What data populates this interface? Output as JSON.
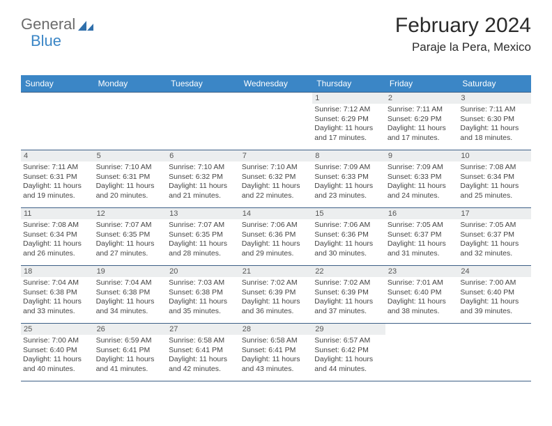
{
  "logo": {
    "text_gray": "General",
    "text_blue": "Blue",
    "icon_color": "#2f6fab"
  },
  "header": {
    "month_title": "February 2024",
    "location": "Paraje la Pera, Mexico"
  },
  "colors": {
    "header_bar": "#3b86c6",
    "header_text": "#ffffff",
    "divider": "#3b5e85",
    "daynum_bg": "#eceeef",
    "daynum_text": "#555555",
    "body_text": "#444444"
  },
  "day_names": [
    "Sunday",
    "Monday",
    "Tuesday",
    "Wednesday",
    "Thursday",
    "Friday",
    "Saturday"
  ],
  "weeks": [
    [
      {
        "empty": true
      },
      {
        "empty": true
      },
      {
        "empty": true
      },
      {
        "empty": true
      },
      {
        "num": "1",
        "sunrise": "Sunrise: 7:12 AM",
        "sunset": "Sunset: 6:29 PM",
        "daylight": "Daylight: 11 hours and 17 minutes."
      },
      {
        "num": "2",
        "sunrise": "Sunrise: 7:11 AM",
        "sunset": "Sunset: 6:29 PM",
        "daylight": "Daylight: 11 hours and 17 minutes."
      },
      {
        "num": "3",
        "sunrise": "Sunrise: 7:11 AM",
        "sunset": "Sunset: 6:30 PM",
        "daylight": "Daylight: 11 hours and 18 minutes."
      }
    ],
    [
      {
        "num": "4",
        "sunrise": "Sunrise: 7:11 AM",
        "sunset": "Sunset: 6:31 PM",
        "daylight": "Daylight: 11 hours and 19 minutes."
      },
      {
        "num": "5",
        "sunrise": "Sunrise: 7:10 AM",
        "sunset": "Sunset: 6:31 PM",
        "daylight": "Daylight: 11 hours and 20 minutes."
      },
      {
        "num": "6",
        "sunrise": "Sunrise: 7:10 AM",
        "sunset": "Sunset: 6:32 PM",
        "daylight": "Daylight: 11 hours and 21 minutes."
      },
      {
        "num": "7",
        "sunrise": "Sunrise: 7:10 AM",
        "sunset": "Sunset: 6:32 PM",
        "daylight": "Daylight: 11 hours and 22 minutes."
      },
      {
        "num": "8",
        "sunrise": "Sunrise: 7:09 AM",
        "sunset": "Sunset: 6:33 PM",
        "daylight": "Daylight: 11 hours and 23 minutes."
      },
      {
        "num": "9",
        "sunrise": "Sunrise: 7:09 AM",
        "sunset": "Sunset: 6:33 PM",
        "daylight": "Daylight: 11 hours and 24 minutes."
      },
      {
        "num": "10",
        "sunrise": "Sunrise: 7:08 AM",
        "sunset": "Sunset: 6:34 PM",
        "daylight": "Daylight: 11 hours and 25 minutes."
      }
    ],
    [
      {
        "num": "11",
        "sunrise": "Sunrise: 7:08 AM",
        "sunset": "Sunset: 6:34 PM",
        "daylight": "Daylight: 11 hours and 26 minutes."
      },
      {
        "num": "12",
        "sunrise": "Sunrise: 7:07 AM",
        "sunset": "Sunset: 6:35 PM",
        "daylight": "Daylight: 11 hours and 27 minutes."
      },
      {
        "num": "13",
        "sunrise": "Sunrise: 7:07 AM",
        "sunset": "Sunset: 6:35 PM",
        "daylight": "Daylight: 11 hours and 28 minutes."
      },
      {
        "num": "14",
        "sunrise": "Sunrise: 7:06 AM",
        "sunset": "Sunset: 6:36 PM",
        "daylight": "Daylight: 11 hours and 29 minutes."
      },
      {
        "num": "15",
        "sunrise": "Sunrise: 7:06 AM",
        "sunset": "Sunset: 6:36 PM",
        "daylight": "Daylight: 11 hours and 30 minutes."
      },
      {
        "num": "16",
        "sunrise": "Sunrise: 7:05 AM",
        "sunset": "Sunset: 6:37 PM",
        "daylight": "Daylight: 11 hours and 31 minutes."
      },
      {
        "num": "17",
        "sunrise": "Sunrise: 7:05 AM",
        "sunset": "Sunset: 6:37 PM",
        "daylight": "Daylight: 11 hours and 32 minutes."
      }
    ],
    [
      {
        "num": "18",
        "sunrise": "Sunrise: 7:04 AM",
        "sunset": "Sunset: 6:38 PM",
        "daylight": "Daylight: 11 hours and 33 minutes."
      },
      {
        "num": "19",
        "sunrise": "Sunrise: 7:04 AM",
        "sunset": "Sunset: 6:38 PM",
        "daylight": "Daylight: 11 hours and 34 minutes."
      },
      {
        "num": "20",
        "sunrise": "Sunrise: 7:03 AM",
        "sunset": "Sunset: 6:38 PM",
        "daylight": "Daylight: 11 hours and 35 minutes."
      },
      {
        "num": "21",
        "sunrise": "Sunrise: 7:02 AM",
        "sunset": "Sunset: 6:39 PM",
        "daylight": "Daylight: 11 hours and 36 minutes."
      },
      {
        "num": "22",
        "sunrise": "Sunrise: 7:02 AM",
        "sunset": "Sunset: 6:39 PM",
        "daylight": "Daylight: 11 hours and 37 minutes."
      },
      {
        "num": "23",
        "sunrise": "Sunrise: 7:01 AM",
        "sunset": "Sunset: 6:40 PM",
        "daylight": "Daylight: 11 hours and 38 minutes."
      },
      {
        "num": "24",
        "sunrise": "Sunrise: 7:00 AM",
        "sunset": "Sunset: 6:40 PM",
        "daylight": "Daylight: 11 hours and 39 minutes."
      }
    ],
    [
      {
        "num": "25",
        "sunrise": "Sunrise: 7:00 AM",
        "sunset": "Sunset: 6:40 PM",
        "daylight": "Daylight: 11 hours and 40 minutes."
      },
      {
        "num": "26",
        "sunrise": "Sunrise: 6:59 AM",
        "sunset": "Sunset: 6:41 PM",
        "daylight": "Daylight: 11 hours and 41 minutes."
      },
      {
        "num": "27",
        "sunrise": "Sunrise: 6:58 AM",
        "sunset": "Sunset: 6:41 PM",
        "daylight": "Daylight: 11 hours and 42 minutes."
      },
      {
        "num": "28",
        "sunrise": "Sunrise: 6:58 AM",
        "sunset": "Sunset: 6:41 PM",
        "daylight": "Daylight: 11 hours and 43 minutes."
      },
      {
        "num": "29",
        "sunrise": "Sunrise: 6:57 AM",
        "sunset": "Sunset: 6:42 PM",
        "daylight": "Daylight: 11 hours and 44 minutes."
      },
      {
        "empty": true
      },
      {
        "empty": true
      }
    ]
  ]
}
